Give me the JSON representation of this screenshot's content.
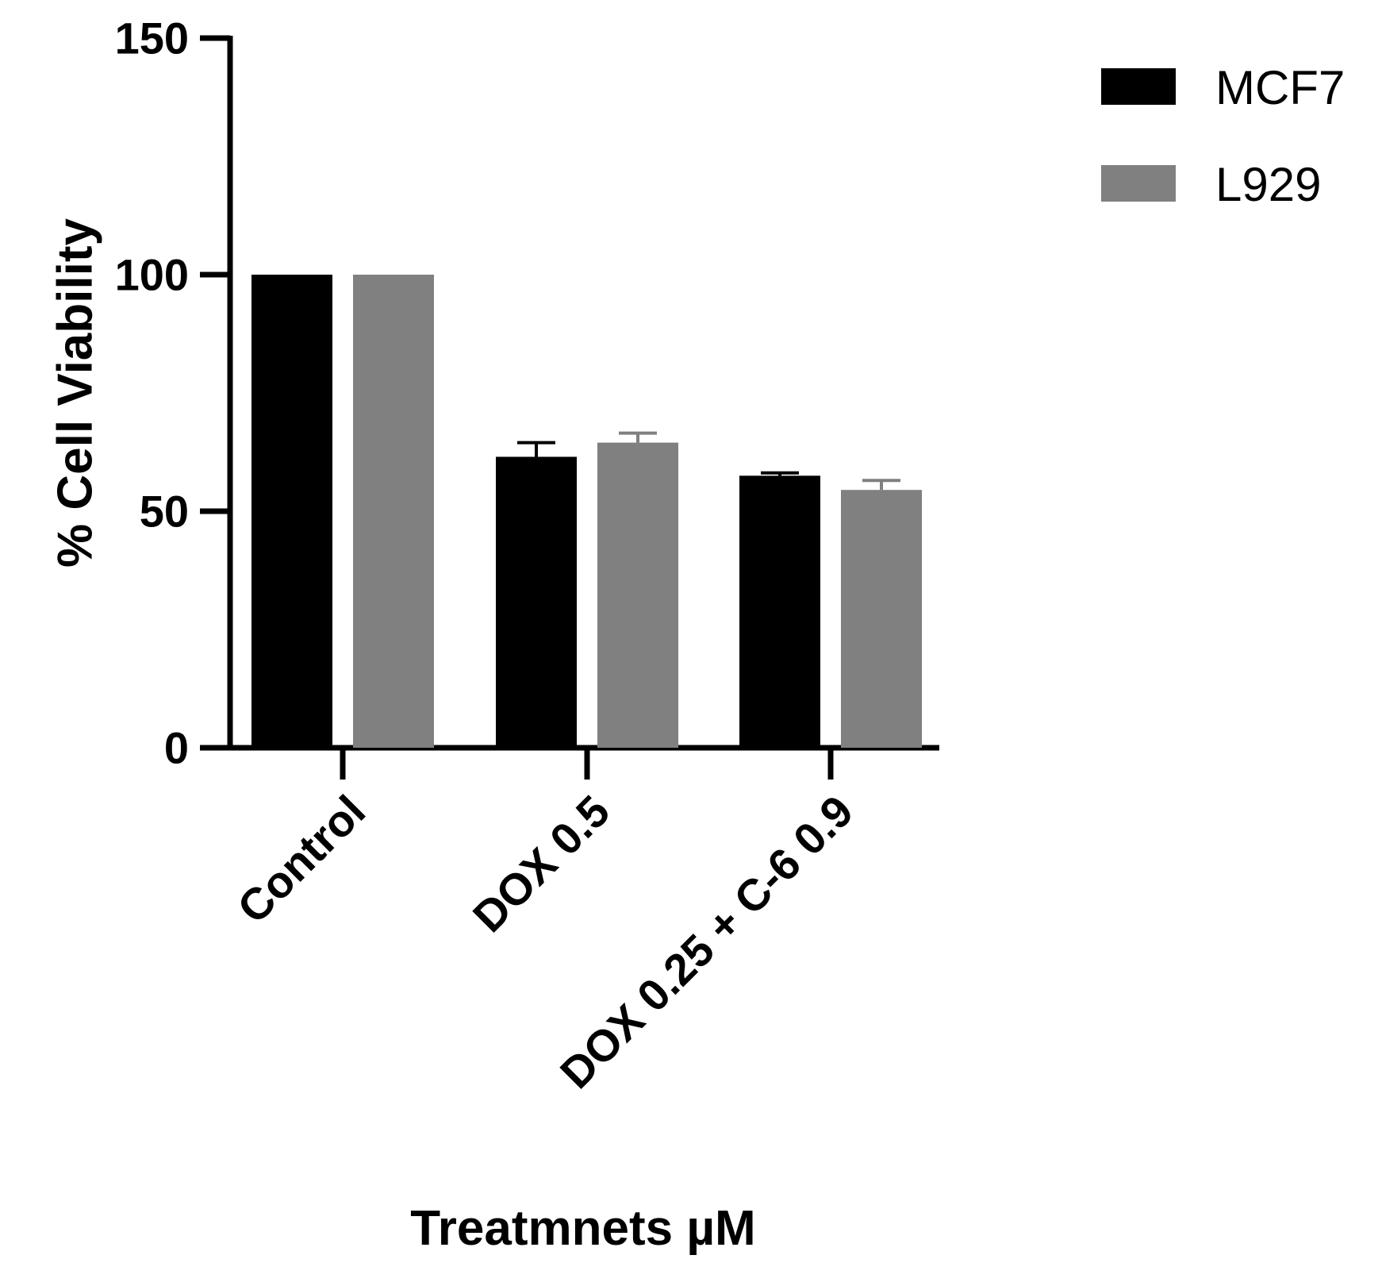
{
  "chart_data": {
    "type": "bar",
    "title": "",
    "xlabel": "Treatmnets µM",
    "ylabel": "% Cell Viability",
    "ylim": [
      0,
      150
    ],
    "yticks": [
      0,
      50,
      100,
      150
    ],
    "categories": [
      "Control",
      "DOX 0.5",
      "DOX 0.25 + C-6 0.9"
    ],
    "series": [
      {
        "name": "MCF7",
        "color": "#000000",
        "values": [
          100,
          61.5,
          57.5
        ],
        "errors": [
          0,
          3,
          0.6
        ]
      },
      {
        "name": "L929",
        "color": "#808080",
        "values": [
          100,
          64.5,
          54.5
        ],
        "errors": [
          0,
          2,
          2
        ]
      }
    ],
    "legend_position": "top-right",
    "grid": false
  }
}
